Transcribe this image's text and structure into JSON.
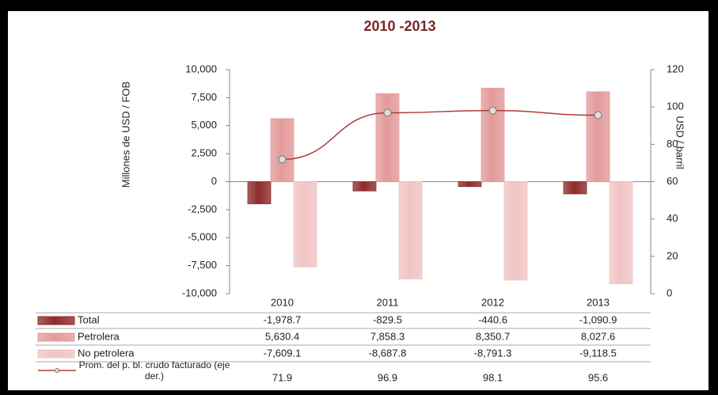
{
  "chart_data": {
    "type": "bar",
    "title": "2010 -2013",
    "y_label": "Millones de USD / FOB",
    "y2_label": "USD / barril",
    "categories": [
      "2010",
      "2011",
      "2012",
      "2013"
    ],
    "series": [
      {
        "name": "Total",
        "color": "#8e2b2b",
        "values": [
          -1978.7,
          -829.5,
          -440.6,
          -1090.9
        ],
        "value_labels": [
          "-1,978.7",
          "-829.5",
          "-440.6",
          "-1,090.9"
        ]
      },
      {
        "name": "Petrolera",
        "color": "#e39a9a",
        "values": [
          5630.4,
          7858.3,
          8350.7,
          8027.6
        ],
        "value_labels": [
          "5,630.4",
          "7,858.3",
          "8,350.7",
          "8,027.6"
        ]
      },
      {
        "name": "No petrolera",
        "color": "#f0c4c4",
        "values": [
          -7609.1,
          -8687.8,
          -8791.3,
          -9118.5
        ],
        "value_labels": [
          "-7,609.1",
          "-8,687.8",
          "-8,791.3",
          "-9,118.5"
        ]
      },
      {
        "name": "Prom. del p. bl. crudo facturado (eje der.)",
        "type": "line",
        "axis": "y2",
        "color": "#b23a3a",
        "values": [
          71.9,
          96.9,
          98.1,
          95.6
        ]
      }
    ],
    "ylim": [
      -10000,
      10000
    ],
    "yticks": [
      {
        "value": -10000,
        "label": "-10,000"
      },
      {
        "value": -7500,
        "label": "-7,500"
      },
      {
        "value": -5000,
        "label": "-5,000"
      },
      {
        "value": -2500,
        "label": "-2,500"
      },
      0,
      {
        "value": 2500,
        "label": "2,500"
      },
      {
        "value": 5000,
        "label": "5,000"
      },
      {
        "value": 7500,
        "label": "7,500"
      },
      {
        "value": 10000,
        "label": "10,000"
      }
    ],
    "y2lim": [
      0,
      120
    ],
    "y2ticks": [
      0,
      20,
      40,
      60,
      80,
      100,
      120
    ]
  }
}
